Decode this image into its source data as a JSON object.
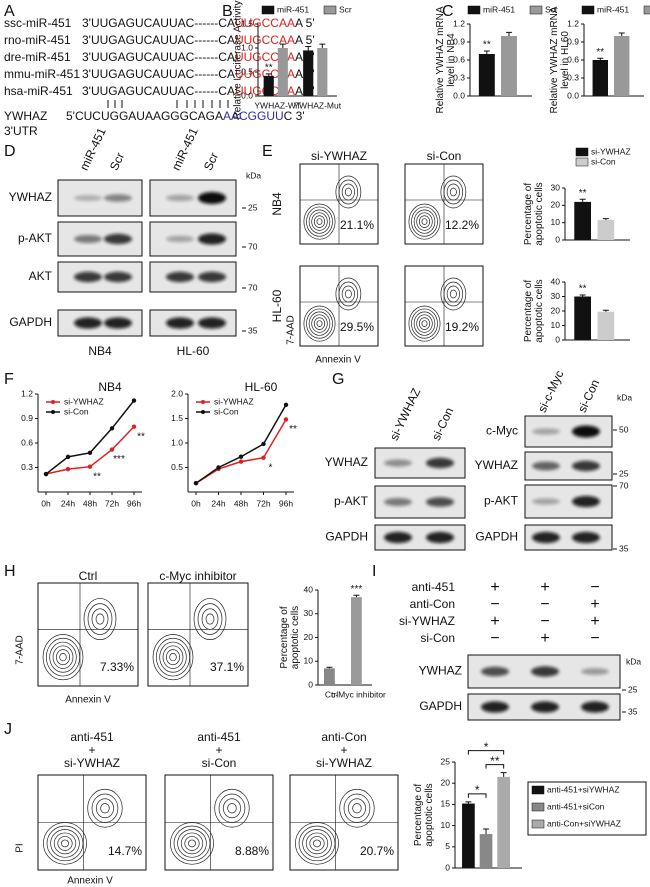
{
  "panel_labels": [
    "A",
    "B",
    "C",
    "D",
    "E",
    "F",
    "G",
    "H",
    "I",
    "J"
  ],
  "alignment": {
    "rows": [
      {
        "name": "ssc-miR-451",
        "seq": [
          "3'UUGAGUCAUUAC------CA",
          "UUGCCAA",
          "A 5'"
        ]
      },
      {
        "name": "rno-miR-451",
        "seq": [
          "3'UUGAGUCAUUAC------CA",
          "UUGCCAA",
          "A 5'"
        ]
      },
      {
        "name": "dre-miR-451",
        "seq": [
          "3'UUGAGUCAUUAC------CA",
          "UUGCCAA",
          "A 5'"
        ]
      },
      {
        "name": "mmu-miR-451",
        "seq": [
          "3'UUGAGUCAUUAC------CA",
          "UUGCCAA",
          "A 5'"
        ]
      },
      {
        "name": "hsa-miR-451",
        "seq": [
          "3'UUGAGUCAUUAC------CA",
          "UUGCCAA",
          "A 5'"
        ]
      }
    ],
    "target": {
      "name": [
        "YWHAZ",
        "3'UTR"
      ],
      "seq": [
        "5'CUCUGGAUAAGGGCAGA",
        "AACGGUU",
        "C 3'"
      ]
    }
  },
  "chart_data": [
    {
      "type": "bar",
      "ylabel": [
        "Relative Luciferase Activity"
      ],
      "categories": [
        "YWHAZ-WT",
        "YWHAZ-Mut"
      ],
      "series": [
        {
          "name": "miR-451",
          "color": "#111111",
          "values": [
            0.42,
            0.95
          ],
          "errors": [
            0.04,
            0.08
          ]
        },
        {
          "name": "Scr",
          "color": "#999999",
          "values": [
            1.0,
            1.0
          ],
          "errors": [
            0.08,
            0.08
          ]
        }
      ],
      "ylim": [
        0,
        1.5
      ],
      "yticks": [
        {
          "value": 0,
          "label": "0.0"
        },
        0.5,
        {
          "value": 1,
          "label": "1.0"
        },
        1.5
      ],
      "legend": true,
      "annotations": [
        {
          "text": "**",
          "series": 0,
          "category": 0
        }
      ]
    },
    {
      "type": "bar",
      "ylabel": [
        "Relative YWHAZ mRNA",
        "level in NB4"
      ],
      "categories": [
        null
      ],
      "series": [
        {
          "name": "miR-451",
          "color": "#111111",
          "values": [
            0.7
          ],
          "errors": [
            0.05
          ]
        },
        {
          "name": "Scr",
          "color": "#999999",
          "values": [
            1.0
          ],
          "errors": [
            0.06
          ]
        }
      ],
      "ylim": [
        0,
        1.2
      ],
      "yticks": [
        {
          "value": 0,
          "label": "0.0"
        },
        0.3,
        0.6,
        0.9,
        1.2
      ],
      "legend": true,
      "annotations": [
        {
          "text": "**",
          "series": 0,
          "category": 0
        }
      ]
    },
    {
      "type": "bar",
      "ylabel": [
        "Relative YWHAZ mRNA",
        "level in HL60"
      ],
      "categories": [
        null
      ],
      "series": [
        {
          "name": "miR-451",
          "color": "#111111",
          "values": [
            0.6
          ],
          "errors": [
            0.03
          ]
        },
        {
          "name": "Scr",
          "color": "#999999",
          "values": [
            1.0
          ],
          "errors": [
            0.05
          ]
        }
      ],
      "ylim": [
        0,
        1.2
      ],
      "yticks": [
        {
          "value": 0,
          "label": "0.0"
        },
        0.3,
        0.6,
        0.9,
        1.2
      ],
      "legend": true,
      "annotations": [
        {
          "text": "**",
          "series": 0,
          "category": 0
        }
      ]
    },
    {
      "type": "bar",
      "ylabel": [
        "Percentage of",
        "apoptotic cells"
      ],
      "categories": [
        null
      ],
      "series": [
        {
          "name": "si-YWHAZ",
          "color": "#111111",
          "values": [
            22
          ],
          "errors": [
            1.5
          ]
        },
        {
          "name": "si-Con",
          "color": "#cccccc",
          "values": [
            11.5
          ],
          "errors": [
            0.8
          ]
        }
      ],
      "ylim": [
        0,
        30
      ],
      "yticks": [
        0,
        10,
        20,
        30
      ],
      "legend": true,
      "annotations": [
        {
          "text": "**",
          "series": 0,
          "category": 0
        }
      ]
    },
    {
      "type": "bar",
      "ylabel": [
        "Percentage of",
        "apoptotic cells"
      ],
      "categories": [
        null
      ],
      "series": [
        {
          "color": "#111111",
          "values": [
            30
          ],
          "errors": [
            1
          ]
        },
        {
          "color": "#cccccc",
          "values": [
            19.5
          ],
          "errors": [
            1
          ]
        }
      ],
      "ylim": [
        0,
        40
      ],
      "yticks": [
        0,
        10,
        20,
        30,
        40
      ],
      "legend": false,
      "annotations": [
        {
          "text": "**",
          "series": 0,
          "category": 0
        }
      ]
    },
    {
      "type": "line",
      "title": "NB4",
      "categories": [
        "0h",
        "24h",
        "48h",
        "72h",
        "96h"
      ],
      "series": [
        {
          "name": "si-YWHAZ",
          "color": "#e02020",
          "values": [
            0.22,
            0.28,
            0.31,
            0.52,
            0.8
          ]
        },
        {
          "name": "si-Con",
          "color": "#111111",
          "values": [
            0.22,
            0.43,
            0.48,
            0.78,
            1.12
          ]
        }
      ],
      "ylim": [
        0,
        1.2
      ],
      "yticks": [
        0.3,
        0.6,
        0.9,
        1.2
      ],
      "legend": true,
      "annotations": [
        {
          "text": "**",
          "at": 2
        },
        {
          "text": "***",
          "at": 3
        },
        {
          "text": "**",
          "at": 4
        }
      ]
    },
    {
      "type": "line",
      "title": "HL-60",
      "categories": [
        "0h",
        "24h",
        "48h",
        "72h",
        "96h"
      ],
      "series": [
        {
          "name": "si-YWHAZ",
          "color": "#e02020",
          "values": [
            0.18,
            0.47,
            0.62,
            0.7,
            1.48
          ]
        },
        {
          "name": "si-Con",
          "color": "#111111",
          "values": [
            0.18,
            0.5,
            0.72,
            0.98,
            1.78
          ]
        }
      ],
      "ylim": [
        0,
        2
      ],
      "yticks": [
        0.5,
        {
          "value": 1,
          "label": "1.0"
        },
        1.5,
        {
          "value": 2,
          "label": "2.0"
        }
      ],
      "legend": true,
      "annotations": [
        {
          "text": "*",
          "at": 3
        },
        {
          "text": "**",
          "at": 4
        }
      ]
    },
    {
      "type": "bar",
      "ylabel": [
        "Percentage of",
        "apoptotic cells"
      ],
      "categories": [
        "Ctrl",
        "c-Myc inhibitor"
      ],
      "series": [
        {
          "colors": [
            "#888888",
            "#9a9a9a"
          ],
          "values": [
            7,
            37
          ],
          "errors": [
            0.5,
            0.8
          ]
        }
      ],
      "ylim": [
        0,
        40
      ],
      "yticks": [
        0,
        10,
        20,
        30,
        40
      ],
      "legend": false,
      "annotations": [
        {
          "text": "***",
          "series": 0,
          "category": 1
        }
      ]
    },
    {
      "type": "bar",
      "ylabel": [
        "Percentage of",
        "apoptotic cells"
      ],
      "categories": [
        null
      ],
      "series": [
        {
          "name": "anti-451+siYWHAZ",
          "color": "#111111",
          "values": [
            15.2
          ],
          "errors": [
            0.4
          ]
        },
        {
          "name": "anti-451+siCon",
          "color": "#888888",
          "values": [
            8
          ],
          "errors": [
            1.2
          ]
        },
        {
          "name": "anti-Con+siYWHAZ",
          "color": "#aaaaaa",
          "values": [
            21.5
          ],
          "errors": [
            1
          ]
        }
      ],
      "ylim": [
        0,
        25
      ],
      "yticks": [
        0,
        5,
        10,
        15,
        20,
        25
      ],
      "legend": true,
      "annotations": [
        {
          "text": "*",
          "pair": [
            0,
            1
          ]
        },
        {
          "text": "**",
          "pair": [
            1,
            2
          ]
        },
        {
          "text": "*",
          "pair": [
            0,
            2
          ]
        }
      ]
    }
  ],
  "blots": [
    {
      "columns": [
        "miR-451",
        "Scr",
        "miR-451",
        "Scr"
      ],
      "rows": [
        "YWHAZ",
        "p-AKT",
        "AKT",
        "GAPDH"
      ],
      "kda": "kDa",
      "markers": [
        25,
        70,
        70,
        35
      ],
      "cells": [
        "NB4",
        "HL-60"
      ]
    },
    {
      "columns": [
        "si-YWHAZ",
        "si-Con"
      ],
      "rows": [
        "YWHAZ",
        "p-AKT",
        "GAPDH"
      ]
    },
    {
      "columns": [
        "si-c-Myc",
        "si-Con"
      ],
      "rows": [
        "c-Myc",
        "YWHAZ",
        "p-AKT",
        "GAPDH"
      ],
      "kda": "kDa",
      "markers": [
        50,
        25,
        70,
        35
      ]
    },
    {
      "rows": [
        "YWHAZ",
        "GAPDH"
      ],
      "kda": "kDa",
      "markers": [
        25,
        35
      ]
    }
  ],
  "flow": [
    {
      "columns": [
        [
          "si-YWHAZ"
        ],
        [
          "si-Con"
        ]
      ],
      "rows": [
        "NB4",
        "HL-60"
      ],
      "percents": [
        [
          "21.1%",
          "12.2%"
        ],
        [
          "29.5%",
          "19.2%"
        ]
      ],
      "ylabel": "7-AAD",
      "xlabel": "Annexin V"
    },
    {
      "columns": [
        [
          "Ctrl"
        ],
        [
          "c-Myc inhibitor"
        ]
      ],
      "percents": [
        [
          "7.33%",
          "37.1%"
        ]
      ],
      "ylabel": "7-AAD",
      "xlabel": "Annexin V"
    },
    {
      "columns": [
        [
          "anti-451",
          "+",
          "si-YWHAZ"
        ],
        [
          "anti-451",
          "+",
          "si-Con"
        ],
        [
          "anti-Con",
          "+",
          "si-YWHAZ"
        ]
      ],
      "percents": [
        [
          "14.7%",
          "8.88%",
          "20.7%"
        ]
      ],
      "ylabel": "PI",
      "xlabel": "Annexin V"
    }
  ],
  "treatments": {
    "rows": [
      "anti-451",
      "anti-Con",
      "si-YWHAZ",
      "si-Con"
    ],
    "signs": [
      [
        "+",
        "+",
        "−"
      ],
      [
        "−",
        "−",
        "+"
      ],
      [
        "+",
        "−",
        "+"
      ],
      [
        "−",
        "+",
        "−"
      ]
    ]
  }
}
